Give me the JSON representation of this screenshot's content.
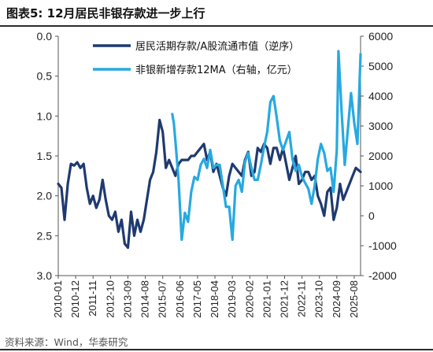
{
  "title": "图表5:  12月居民非银存款进一步上行",
  "source": "资料来源：Wind，华泰研究",
  "chart_data": {
    "type": "line",
    "legend": {
      "placement": "top-right",
      "entries": [
        "居民活期存款/A股流通市值（逆序）",
        "非银新增存款12MA（右轴，亿元）"
      ]
    },
    "colors": {
      "left_series": "#1f3a70",
      "right_series": "#27a9e1"
    },
    "grid": false,
    "x_tick_labels": [
      "2010-01",
      "2010-12",
      "2011-11",
      "2012-10",
      "2013-09",
      "2014-08",
      "2015-07",
      "2016-06",
      "2017-05",
      "2018-04",
      "2019-03",
      "2020-02",
      "2021-01",
      "2021-12",
      "2022-11",
      "2023-10",
      "2024-09",
      "2025-08"
    ],
    "y_left": {
      "ylim": [
        0.0,
        3.0
      ],
      "inverted": true,
      "ticks": [
        "0.0",
        "0.5",
        "1.0",
        "1.5",
        "2.0",
        "2.5",
        "3.0"
      ]
    },
    "y_right": {
      "ylim": [
        -2000,
        6000
      ],
      "ticks": [
        "6000",
        "5000",
        "4000",
        "3000",
        "2000",
        "1000",
        "0",
        "-1000",
        "-2000"
      ]
    },
    "series": [
      {
        "name": "居民活期存款/A股流通市值（逆序）",
        "axis": "left",
        "x": [
          "2010-01",
          "2010-03",
          "2010-05",
          "2010-07",
          "2010-09",
          "2010-11",
          "2011-01",
          "2011-03",
          "2011-05",
          "2011-07",
          "2011-09",
          "2011-11",
          "2012-01",
          "2012-03",
          "2012-05",
          "2012-07",
          "2012-09",
          "2012-11",
          "2013-01",
          "2013-03",
          "2013-05",
          "2013-07",
          "2013-09",
          "2013-11",
          "2014-01",
          "2014-03",
          "2014-05",
          "2014-07",
          "2014-09",
          "2014-11",
          "2015-01",
          "2015-03",
          "2015-05",
          "2015-07",
          "2015-09",
          "2015-11",
          "2016-01",
          "2016-03",
          "2016-05",
          "2016-07",
          "2016-09",
          "2016-11",
          "2017-01",
          "2017-03",
          "2017-05",
          "2017-07",
          "2017-09",
          "2017-11",
          "2018-01",
          "2018-03",
          "2018-05",
          "2018-07",
          "2018-09",
          "2018-11",
          "2019-01",
          "2019-03",
          "2019-05",
          "2019-07",
          "2019-09",
          "2019-11",
          "2020-01",
          "2020-03",
          "2020-05",
          "2020-07",
          "2020-09",
          "2020-11",
          "2021-01",
          "2021-03",
          "2021-05",
          "2021-07",
          "2021-09",
          "2021-11",
          "2022-01",
          "2022-03",
          "2022-05",
          "2022-07",
          "2022-09",
          "2022-11",
          "2023-01",
          "2023-03",
          "2023-05",
          "2023-07",
          "2023-09",
          "2023-11",
          "2024-01",
          "2024-03",
          "2024-05",
          "2024-07",
          "2024-09",
          "2024-11",
          "2025-01",
          "2025-03",
          "2025-05",
          "2025-07",
          "2025-09",
          "2025-12"
        ],
        "values": [
          1.85,
          1.9,
          2.3,
          1.85,
          1.6,
          1.62,
          1.58,
          1.65,
          1.6,
          1.9,
          2.1,
          2.0,
          2.15,
          2.05,
          1.8,
          2.05,
          2.25,
          2.3,
          2.2,
          2.45,
          2.3,
          2.6,
          2.65,
          2.2,
          2.5,
          2.3,
          2.45,
          2.3,
          2.05,
          1.8,
          1.7,
          1.45,
          1.05,
          1.2,
          1.65,
          1.55,
          1.65,
          1.75,
          1.6,
          1.55,
          1.55,
          1.55,
          1.5,
          1.5,
          1.45,
          1.4,
          1.35,
          1.55,
          1.45,
          1.7,
          1.6,
          1.75,
          1.9,
          2.0,
          1.75,
          1.6,
          1.65,
          1.7,
          1.75,
          1.55,
          1.45,
          1.75,
          1.7,
          1.4,
          1.45,
          1.35,
          1.4,
          1.6,
          1.4,
          1.4,
          1.55,
          1.4,
          1.6,
          1.8,
          1.65,
          1.5,
          1.85,
          1.8,
          1.7,
          1.7,
          1.8,
          1.75,
          2.0,
          2.1,
          2.25,
          1.95,
          1.9,
          2.3,
          2.15,
          1.85,
          2.05,
          1.95,
          1.85,
          1.75,
          1.65,
          1.7
        ]
      },
      {
        "name": "非银新增存款12MA（右轴，亿元）",
        "axis": "right",
        "x": [
          "2016-01",
          "2016-02",
          "2016-03",
          "2016-05",
          "2016-07",
          "2016-09",
          "2016-11",
          "2017-01",
          "2017-03",
          "2017-05",
          "2017-07",
          "2017-09",
          "2017-11",
          "2018-01",
          "2018-03",
          "2018-05",
          "2018-07",
          "2018-09",
          "2018-11",
          "2019-01",
          "2019-03",
          "2019-05",
          "2019-07",
          "2019-09",
          "2019-11",
          "2020-01",
          "2020-03",
          "2020-05",
          "2020-07",
          "2020-09",
          "2020-11",
          "2021-01",
          "2021-03",
          "2021-05",
          "2021-07",
          "2021-09",
          "2021-11",
          "2022-01",
          "2022-03",
          "2022-05",
          "2022-07",
          "2022-09",
          "2022-11",
          "2023-01",
          "2023-03",
          "2023-05",
          "2023-07",
          "2023-09",
          "2023-11",
          "2024-01",
          "2024-03",
          "2024-05",
          "2024-07",
          "2024-09",
          "2024-10",
          "2024-12",
          "2025-02",
          "2025-04",
          "2025-06",
          "2025-08",
          "2025-10",
          "2025-12"
        ],
        "values": [
          3400,
          3100,
          2500,
          1200,
          -800,
          100,
          -200,
          800,
          1300,
          1200,
          1700,
          1900,
          1600,
          2200,
          1600,
          1700,
          1700,
          1000,
          300,
          300,
          -800,
          1000,
          1200,
          800,
          1800,
          2100,
          1600,
          1200,
          1200,
          1700,
          2300,
          2800,
          3800,
          4000,
          3300,
          2500,
          2200,
          2500,
          2800,
          1900,
          1500,
          1700,
          1300,
          1100,
          900,
          400,
          1000,
          1900,
          2400,
          2100,
          1500,
          1600,
          800,
          2200,
          5500,
          3500,
          1700,
          2900,
          4100,
          3100,
          2400,
          5400
        ]
      }
    ]
  }
}
